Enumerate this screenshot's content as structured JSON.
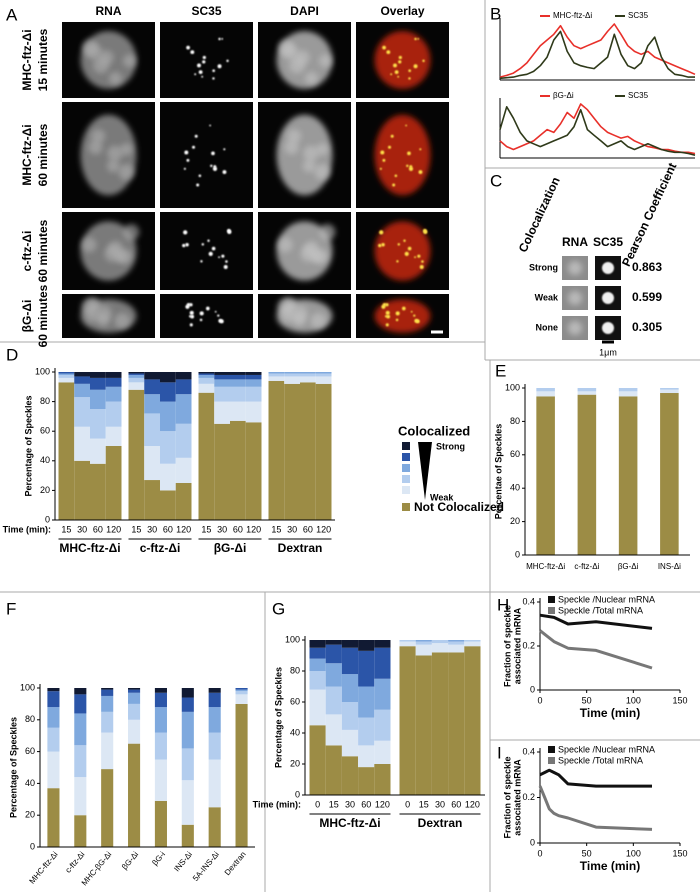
{
  "panel_labels": [
    "A",
    "B",
    "C",
    "D",
    "E",
    "F",
    "G",
    "H",
    "I"
  ],
  "panel_a": {
    "columns": [
      "RNA",
      "SC35",
      "DAPI",
      "Overlay"
    ],
    "rows": [
      {
        "construct": "MHC-ftz-Δi",
        "time": "15 minutes"
      },
      {
        "construct": "MHC-ftz-Δi",
        "time": "60 minutes"
      },
      {
        "construct": "c-ftz-Δi",
        "time": "60 minutes"
      },
      {
        "construct": "βG-Δi",
        "time": "60 minutes"
      }
    ]
  },
  "panel_c": {
    "headers": [
      "Colocalization",
      "RNA",
      "SC35",
      "Pearson Coefficient"
    ],
    "rows": [
      [
        "Strong",
        0.863
      ],
      [
        "Weak",
        0.599
      ],
      [
        "None",
        0.305
      ]
    ],
    "scale_bar": "1μm"
  },
  "chart_data": [
    {
      "type": "line",
      "series": [
        {
          "name": "MHC-ftz-Δi",
          "color": "#e8302a",
          "values": [
            5,
            8,
            12,
            20,
            30,
            45,
            60,
            70,
            80,
            95,
            75,
            60,
            55,
            60,
            65,
            70,
            85,
            98,
            80,
            60,
            50,
            45,
            50,
            40,
            35,
            30,
            25,
            20,
            15,
            10
          ]
        },
        {
          "name": "SC35",
          "color": "#2f3a1a",
          "values": [
            3,
            4,
            5,
            8,
            10,
            15,
            25,
            40,
            70,
            85,
            50,
            30,
            25,
            22,
            20,
            30,
            40,
            80,
            45,
            25,
            20,
            30,
            60,
            75,
            40,
            20,
            10,
            8,
            5,
            5
          ]
        }
      ]
    },
    {
      "type": "line",
      "series": [
        {
          "name": "βG-Δi",
          "color": "#e8302a",
          "values": [
            30,
            20,
            15,
            20,
            25,
            30,
            40,
            50,
            45,
            60,
            80,
            70,
            95,
            85,
            70,
            55,
            45,
            40,
            35,
            38,
            30,
            25,
            20,
            18,
            15,
            15,
            12,
            10,
            10,
            8
          ]
        },
        {
          "name": "SC35",
          "color": "#2f3a1a",
          "values": [
            50,
            90,
            70,
            45,
            30,
            25,
            20,
            25,
            30,
            35,
            40,
            55,
            85,
            50,
            40,
            30,
            20,
            25,
            30,
            20,
            15,
            20,
            25,
            20,
            15,
            12,
            10,
            10,
            8,
            5
          ]
        }
      ]
    },
    {
      "type": "stacked_bar",
      "groups": [
        {
          "name": "MHC-ftz-Δi",
          "categories": [
            "15",
            "30",
            "60",
            "120"
          ]
        },
        {
          "name": "c-ftz-Δi",
          "categories": [
            "15",
            "30",
            "60",
            "120"
          ]
        },
        {
          "name": "βG-Δi",
          "categories": [
            "15",
            "30",
            "60",
            "120"
          ]
        },
        {
          "name": "Dextran",
          "categories": [
            "15",
            "30",
            "60",
            "120"
          ]
        }
      ],
      "x_label": "Time (min):",
      "y_label": "Percentage of Speckles",
      "ylim": [
        0,
        100
      ],
      "yticks": [
        0,
        20,
        40,
        60,
        80,
        100
      ],
      "legend_title": "Colocalized",
      "legend_strong": "Strong",
      "legend_weak": "Weak",
      "series": [
        {
          "name": "Not Colocalized",
          "color": "#9c8c45",
          "values": [
            93,
            40,
            38,
            50,
            88,
            27,
            20,
            25,
            86,
            65,
            67,
            66,
            94,
            92,
            93,
            92
          ]
        },
        {
          "color": "#dce7f4",
          "values": [
            3,
            23,
            17,
            13,
            5,
            23,
            18,
            17,
            6,
            15,
            13,
            14,
            3,
            5,
            4,
            5
          ]
        },
        {
          "color": "#b3cdee",
          "values": [
            2,
            20,
            20,
            17,
            3,
            22,
            22,
            23,
            4,
            10,
            10,
            10,
            2,
            2,
            2,
            2
          ]
        },
        {
          "color": "#7fa9de",
          "values": [
            1,
            9,
            13,
            10,
            2,
            13,
            20,
            20,
            2,
            5,
            5,
            5,
            1,
            1,
            1,
            1
          ]
        },
        {
          "color": "#2b55a8",
          "values": [
            1,
            5,
            8,
            6,
            1,
            10,
            13,
            10,
            1,
            3,
            3,
            3,
            0,
            0,
            0,
            0
          ]
        },
        {
          "color": "#111a33",
          "values": [
            0,
            3,
            4,
            4,
            1,
            5,
            7,
            5,
            1,
            2,
            2,
            2,
            0,
            0,
            0,
            0
          ]
        }
      ]
    },
    {
      "type": "stacked_bar",
      "categories": [
        "MHC-ftz-Δi",
        "c-ftz-Δi",
        "βG-Δi",
        "INS-Δi"
      ],
      "y_label": "Percentae of Speckles",
      "ylim": [
        0,
        100
      ],
      "yticks": [
        0,
        20,
        40,
        60,
        80,
        100
      ],
      "series": [
        {
          "color": "#9c8c45",
          "values": [
            95,
            96,
            95,
            97
          ]
        },
        {
          "color": "#dce7f4",
          "values": [
            3,
            2,
            3,
            2
          ]
        },
        {
          "color": "#b3cdee",
          "values": [
            2,
            2,
            2,
            1
          ]
        }
      ]
    },
    {
      "type": "stacked_bar",
      "categories": [
        "MHC-ftz-Δi",
        "c-ftz-Δi",
        "MHC-βG-Δi",
        "βG-Δi",
        "βG-i",
        "INS-Δi",
        "5A-INS-Δi",
        "Dextran"
      ],
      "y_label": "Percentage of Speckles",
      "ylim": [
        0,
        100
      ],
      "yticks": [
        0,
        20,
        40,
        60,
        80,
        100
      ],
      "series": [
        {
          "color": "#9c8c45",
          "values": [
            37,
            20,
            49,
            65,
            29,
            14,
            25,
            90
          ]
        },
        {
          "color": "#dce7f4",
          "values": [
            23,
            24,
            23,
            15,
            26,
            28,
            30,
            6
          ]
        },
        {
          "color": "#b3cdee",
          "values": [
            15,
            20,
            13,
            10,
            17,
            20,
            17,
            2
          ]
        },
        {
          "color": "#7fa9de",
          "values": [
            13,
            20,
            10,
            7,
            16,
            23,
            16,
            1
          ]
        },
        {
          "color": "#2b55a8",
          "values": [
            10,
            12,
            4,
            2,
            9,
            9,
            9,
            1
          ]
        },
        {
          "color": "#111a33",
          "values": [
            2,
            4,
            1,
            1,
            3,
            6,
            3,
            0
          ]
        }
      ]
    },
    {
      "type": "stacked_bar",
      "groups": [
        {
          "name": "MHC-ftz-Δi",
          "categories": [
            "0",
            "15",
            "30",
            "60",
            "120"
          ]
        },
        {
          "name": "Dextran",
          "categories": [
            "0",
            "15",
            "30",
            "60",
            "120"
          ]
        }
      ],
      "x_label": "Time (min):",
      "y_label": "Percentage of Speckles",
      "ylim": [
        0,
        100
      ],
      "yticks": [
        0,
        20,
        40,
        60,
        80,
        100
      ],
      "series": [
        {
          "color": "#9c8c45",
          "values": [
            45,
            32,
            25,
            18,
            20,
            96,
            90,
            92,
            92,
            96
          ]
        },
        {
          "color": "#dce7f4",
          "values": [
            23,
            20,
            17,
            14,
            15,
            3,
            7,
            6,
            5,
            3
          ]
        },
        {
          "color": "#b3cdee",
          "values": [
            12,
            18,
            18,
            18,
            20,
            1,
            2,
            2,
            2,
            1
          ]
        },
        {
          "color": "#7fa9de",
          "values": [
            8,
            15,
            18,
            20,
            20,
            0,
            1,
            0,
            1,
            0
          ]
        },
        {
          "color": "#2b55a8",
          "values": [
            7,
            12,
            17,
            23,
            20,
            0,
            0,
            0,
            0,
            0
          ]
        },
        {
          "color": "#111a33",
          "values": [
            5,
            3,
            5,
            7,
            5,
            0,
            0,
            0,
            0,
            0
          ]
        }
      ]
    },
    {
      "type": "line",
      "x": [
        0,
        15,
        30,
        60,
        120
      ],
      "xlim": [
        0,
        150
      ],
      "xticks": [
        0,
        50,
        100,
        150
      ],
      "ylim": [
        0,
        0.4
      ],
      "yticks": [
        0,
        0.2,
        0.4
      ],
      "x_label": "Time (min)",
      "y_label": [
        "Fraction of speckle",
        "associated mRNA"
      ],
      "series": [
        {
          "name": "Speckle /Nuclear mRNA",
          "color": "#111111",
          "values": [
            0.34,
            0.33,
            0.3,
            0.31,
            0.28
          ]
        },
        {
          "name": "Speckle /Total mRNA",
          "color": "#777777",
          "values": [
            0.27,
            0.22,
            0.19,
            0.18,
            0.1
          ]
        }
      ]
    },
    {
      "type": "line",
      "x": [
        0,
        5,
        10,
        15,
        20,
        30,
        60,
        120
      ],
      "xlim": [
        0,
        150
      ],
      "xticks": [
        0,
        50,
        100,
        150
      ],
      "ylim": [
        0,
        0.4
      ],
      "yticks": [
        0,
        0.2,
        0.4
      ],
      "x_label": "Time (min)",
      "y_label": [
        "Fraction of speckle",
        "associated mRNA"
      ],
      "series": [
        {
          "name": "Speckle /Nuclear mRNA",
          "color": "#111111",
          "values": [
            0.3,
            0.31,
            0.32,
            0.31,
            0.3,
            0.26,
            0.25,
            0.25
          ]
        },
        {
          "name": "Speckle /Total mRNA",
          "color": "#777777",
          "values": [
            0.25,
            0.2,
            0.15,
            0.13,
            0.12,
            0.11,
            0.07,
            0.06
          ]
        }
      ]
    }
  ]
}
